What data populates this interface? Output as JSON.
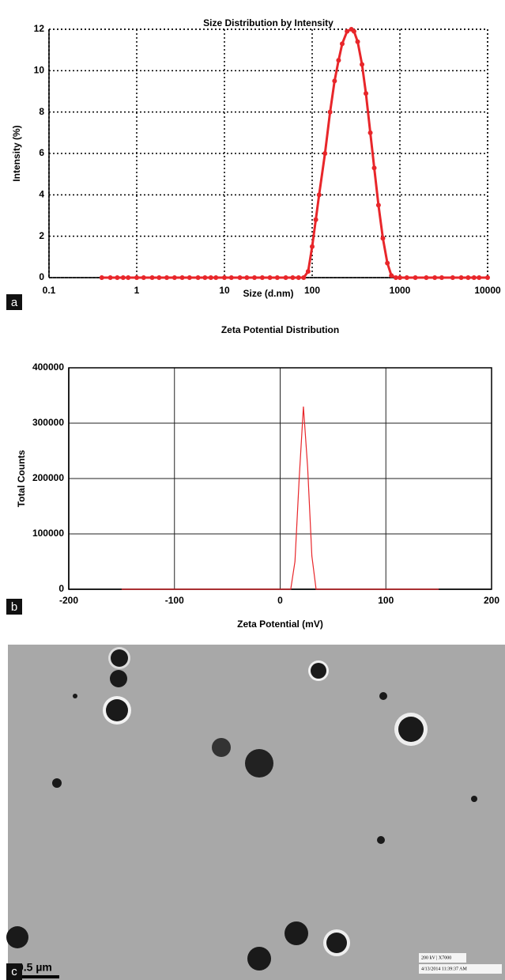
{
  "chart_data": [
    {
      "type": "line",
      "title": "Size Distribution by Intensity",
      "x_label": "Size (d.nm)",
      "y_label": "Intensity (%)",
      "x_scale": "log",
      "xlim": [
        0.1,
        10000
      ],
      "xticks": [
        0.1,
        1,
        10,
        100,
        1000,
        10000
      ],
      "ylim": [
        0,
        12
      ],
      "yticks": [
        0,
        2,
        4,
        6,
        8,
        10,
        12
      ],
      "grid": "dotted",
      "markers": true,
      "x": [
        0.4,
        0.5,
        0.6,
        0.7,
        0.8,
        1,
        1.2,
        1.5,
        1.8,
        2.2,
        2.7,
        3.3,
        4,
        5,
        6,
        7,
        8,
        10,
        12,
        15,
        18,
        22,
        27,
        33,
        40,
        50,
        60,
        70,
        80,
        90,
        100,
        110,
        120,
        140,
        160,
        180,
        200,
        220,
        250,
        280,
        300,
        330,
        370,
        410,
        460,
        510,
        570,
        640,
        720,
        800,
        900,
        1000,
        1200,
        1500,
        2000,
        2500,
        3000,
        4000,
        5000,
        6000,
        7000,
        8000,
        10000
      ],
      "series": [
        {
          "color": "#e8262a",
          "values": [
            0,
            0,
            0,
            0,
            0,
            0,
            0,
            0,
            0,
            0,
            0,
            0,
            0,
            0,
            0,
            0,
            0,
            0,
            0,
            0,
            0,
            0,
            0,
            0,
            0,
            0,
            0,
            0,
            0,
            0.3,
            1.5,
            2.8,
            4,
            6,
            8,
            9.5,
            10.5,
            11.3,
            11.9,
            12,
            11.9,
            11.4,
            10.3,
            8.9,
            7,
            5.3,
            3.5,
            1.9,
            0.7,
            0.1,
            0,
            0,
            0,
            0,
            0,
            0,
            0,
            0,
            0,
            0,
            0,
            0,
            0
          ]
        }
      ]
    },
    {
      "type": "line",
      "title": "Zeta Potential Distribution",
      "x_label": "Zeta Potential (mV)",
      "y_label": "Total Counts",
      "x_scale": "linear",
      "xlim": [
        -200,
        200
      ],
      "xticks": [
        -200,
        -100,
        0,
        100,
        200
      ],
      "ylim": [
        0,
        400000
      ],
      "yticks": [
        0,
        100000,
        200000,
        300000,
        400000
      ],
      "grid": "solid",
      "markers": false,
      "x": [
        -150,
        0,
        10,
        14,
        18,
        22,
        26,
        30,
        34,
        150
      ],
      "series": [
        {
          "color": "#e8262a",
          "values": [
            0,
            0,
            0,
            50000,
            200000,
            330000,
            220000,
            60000,
            0,
            0
          ]
        }
      ]
    }
  ],
  "panel_labels": [
    "a",
    "b",
    "c"
  ],
  "micrograph": {
    "scale_bar": "0.5 µm",
    "info": [
      "200 kV | X7000",
      "4/13/2014 11:39:37 AM"
    ]
  }
}
